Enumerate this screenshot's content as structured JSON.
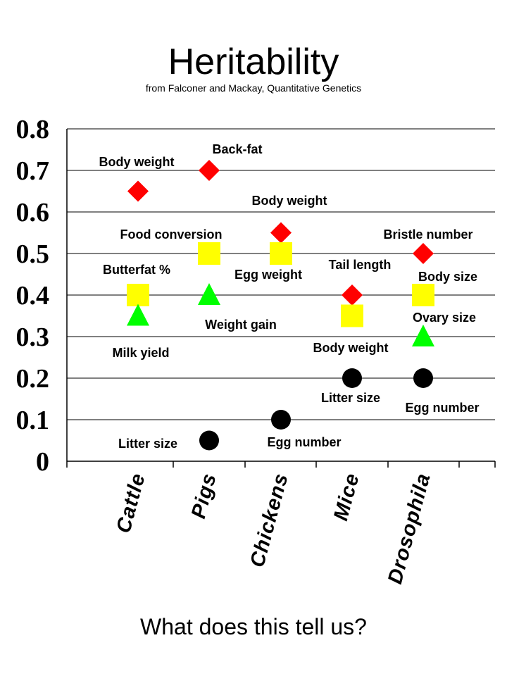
{
  "title": "Heritability",
  "subtitle": "from Falconer and Mackay, Quantitative Genetics",
  "footer": "What does this tell us?",
  "chart_data": {
    "type": "scatter",
    "categories": [
      "Cattle",
      "Pigs",
      "Chickens",
      "Mice",
      "Drosophila"
    ],
    "ylim": [
      0,
      0.8
    ],
    "yticks": [
      "0",
      "0.1",
      "0.2",
      "0.3",
      "0.4",
      "0.5",
      "0.6",
      "0.7",
      "0.8"
    ],
    "grid": true,
    "colors": {
      "diamond": "#ff0000",
      "square": "#ffff00",
      "triangle": "#00ff00",
      "circle": "#000000"
    },
    "points": [
      {
        "category": "Cattle",
        "trait": "Body weight",
        "value": 0.65,
        "marker": "diamond"
      },
      {
        "category": "Cattle",
        "trait": "Butterfat %",
        "value": 0.4,
        "marker": "square"
      },
      {
        "category": "Cattle",
        "trait": "Milk yield",
        "value": 0.35,
        "marker": "triangle"
      },
      {
        "category": "Pigs",
        "trait": "Back-fat",
        "value": 0.7,
        "marker": "diamond"
      },
      {
        "category": "Pigs",
        "trait": "Food conversion",
        "value": 0.5,
        "marker": "square"
      },
      {
        "category": "Pigs",
        "trait": "Weight gain",
        "value": 0.4,
        "marker": "triangle"
      },
      {
        "category": "Pigs",
        "trait": "Litter size",
        "value": 0.05,
        "marker": "circle"
      },
      {
        "category": "Chickens",
        "trait": "Body weight",
        "value": 0.55,
        "marker": "diamond"
      },
      {
        "category": "Chickens",
        "trait": "Egg weight",
        "value": 0.5,
        "marker": "square"
      },
      {
        "category": "Chickens",
        "trait": "Egg number",
        "value": 0.1,
        "marker": "circle"
      },
      {
        "category": "Mice",
        "trait": "Tail length",
        "value": 0.4,
        "marker": "diamond"
      },
      {
        "category": "Mice",
        "trait": "Body weight",
        "value": 0.35,
        "marker": "square"
      },
      {
        "category": "Mice",
        "trait": "Litter size",
        "value": 0.2,
        "marker": "circle"
      },
      {
        "category": "Drosophila",
        "trait": "Bristle number",
        "value": 0.5,
        "marker": "diamond"
      },
      {
        "category": "Drosophila",
        "trait": "Body size",
        "value": 0.4,
        "marker": "square"
      },
      {
        "category": "Drosophila",
        "trait": "Ovary size",
        "value": 0.3,
        "marker": "triangle"
      },
      {
        "category": "Drosophila",
        "trait": "Egg number",
        "value": 0.2,
        "marker": "circle"
      }
    ]
  }
}
